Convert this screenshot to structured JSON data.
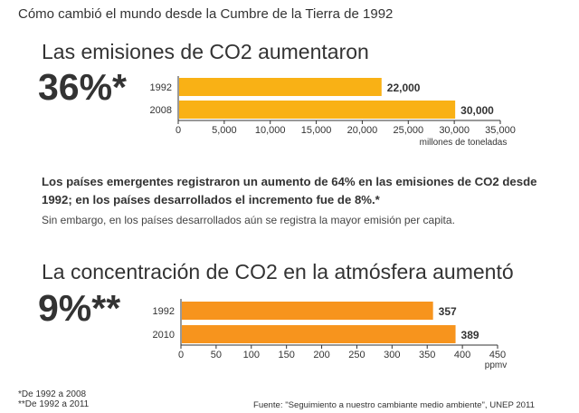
{
  "header": {
    "title": "Cómo cambió el mundo desde la Cumbre de la Tierra de 1992"
  },
  "section1": {
    "heading": "Las emisiones de CO2 aumentaron",
    "big_value": "36%*"
  },
  "text": {
    "paragraph": "Los países emergentes registraron un aumento de 64% en las emisiones de CO2 desde 1992; en los países desarrollados el incremento fue de 8%.*",
    "note": "Sin embargo, en los países desarrollados aún se registra la mayor emisión per capita."
  },
  "section2": {
    "heading": "La concentración de CO2 en la atmósfera aumentó",
    "big_value": "9%**"
  },
  "footer": {
    "note1": "*De 1992 a 2008",
    "note2": "**De 1992 a 2011",
    "source": "Fuente: \"Seguimiento a nuestro cambiante medio ambiente\", UNEP 2011"
  },
  "chart_data": [
    {
      "type": "bar",
      "orientation": "horizontal",
      "categories": [
        "1992",
        "2008"
      ],
      "values": [
        22000,
        30000
      ],
      "value_labels": [
        "22,000",
        "30,000"
      ],
      "xlim": [
        0,
        35000
      ],
      "ticks": [
        "0",
        "5,000",
        "10,000",
        "15,000",
        "20,000",
        "25,000",
        "30,000",
        "35,000"
      ],
      "xlabel": "millones de toneladas",
      "color": "#f9b115",
      "grid": false
    },
    {
      "type": "bar",
      "orientation": "horizontal",
      "categories": [
        "1992",
        "2010"
      ],
      "values": [
        357,
        389
      ],
      "value_labels": [
        "357",
        "389"
      ],
      "xlim": [
        0,
        450
      ],
      "ticks": [
        "0",
        "50",
        "100",
        "150",
        "200",
        "250",
        "300",
        "350",
        "400",
        "450"
      ],
      "xlabel": "ppmv",
      "color": "#f7941d",
      "grid": false
    }
  ]
}
